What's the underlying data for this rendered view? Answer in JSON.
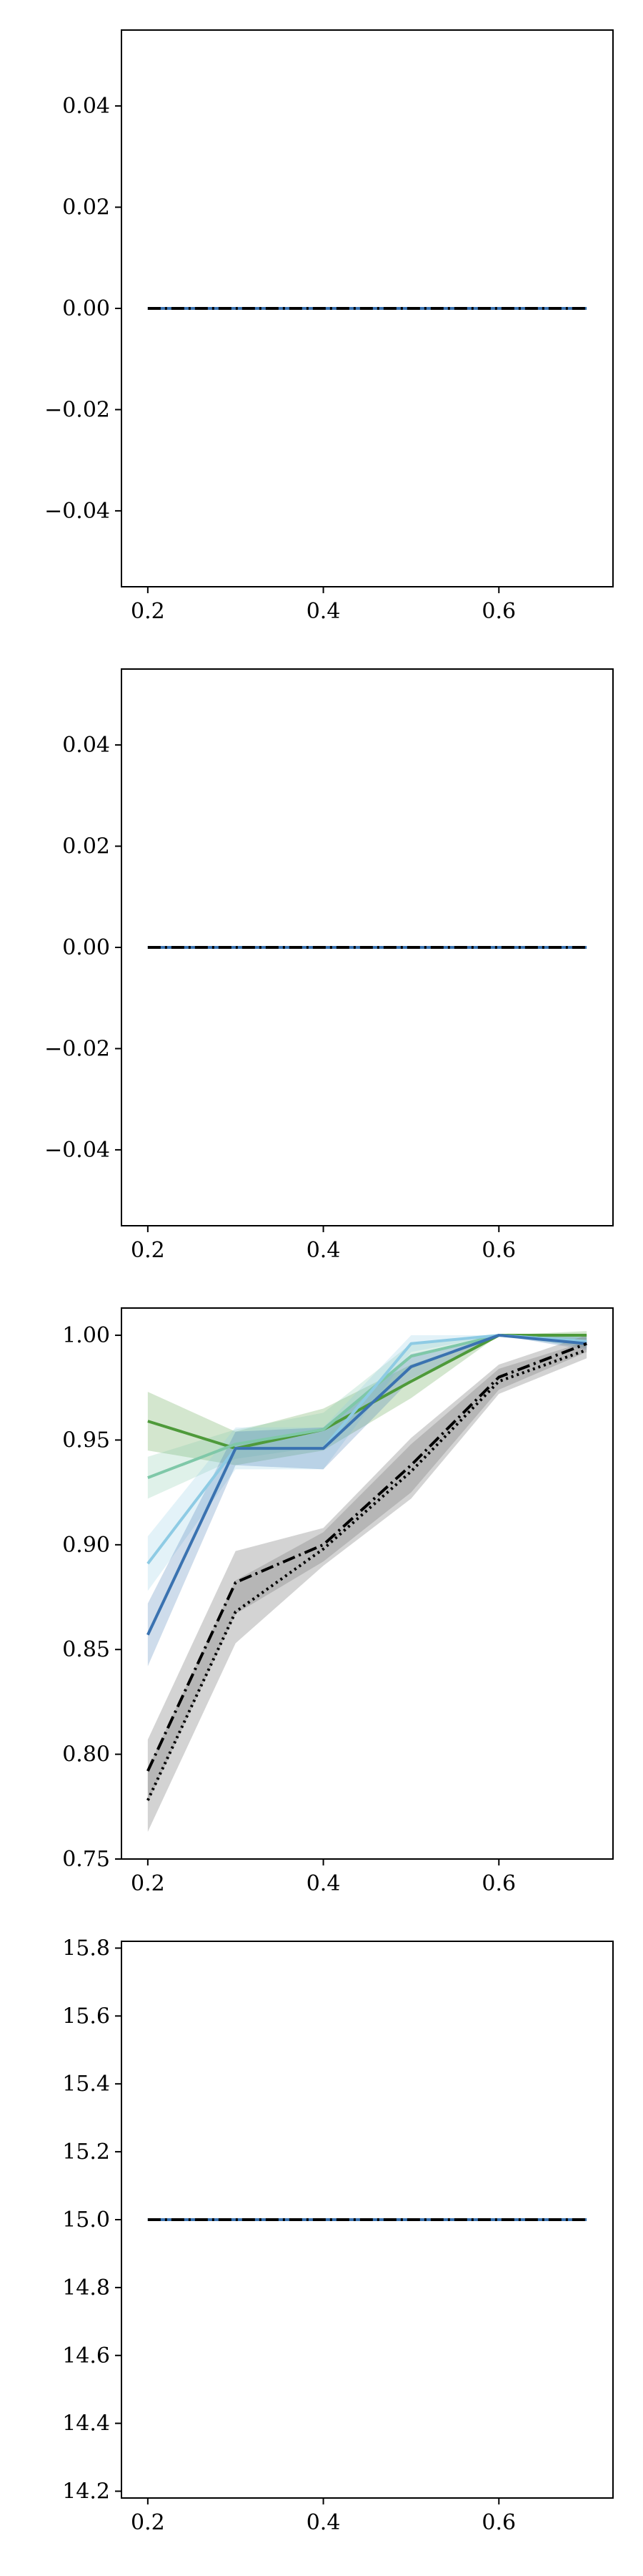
{
  "chart_data": [
    {
      "type": "line",
      "title": "",
      "xlabel": "",
      "ylabel": "",
      "xlim": [
        0.17,
        0.73
      ],
      "ylim": [
        -0.055,
        0.055
      ],
      "xticks": [
        0.2,
        0.4,
        0.6
      ],
      "xtick_labels": [
        "0.2",
        "0.4",
        "0.6"
      ],
      "yticks": [
        -0.04,
        -0.02,
        0.0,
        0.02,
        0.04
      ],
      "ytick_labels": [
        "−0.04",
        "−0.02",
        "0.00",
        "0.02",
        "0.04"
      ],
      "x": [
        0.2,
        0.3,
        0.4,
        0.5,
        0.6,
        0.7
      ],
      "grid": false,
      "series": [
        {
          "color": "#9fd0e6",
          "style": "solid",
          "values": [
            0,
            0,
            0,
            0,
            0,
            0
          ]
        },
        {
          "color": "#3a72b0",
          "style": "solid",
          "values": [
            0,
            0,
            0,
            0,
            0,
            0
          ]
        },
        {
          "color": "#000000",
          "style": "dashdot",
          "values": [
            0,
            0,
            0,
            0,
            0,
            0
          ]
        }
      ]
    },
    {
      "type": "line",
      "title": "",
      "xlabel": "",
      "ylabel": "",
      "xlim": [
        0.17,
        0.73
      ],
      "ylim": [
        -0.055,
        0.055
      ],
      "xticks": [
        0.2,
        0.4,
        0.6
      ],
      "xtick_labels": [
        "0.2",
        "0.4",
        "0.6"
      ],
      "yticks": [
        -0.04,
        -0.02,
        0.0,
        0.02,
        0.04
      ],
      "ytick_labels": [
        "−0.04",
        "−0.02",
        "0.00",
        "0.02",
        "0.04"
      ],
      "x": [
        0.2,
        0.3,
        0.4,
        0.5,
        0.6,
        0.7
      ],
      "grid": false,
      "series": [
        {
          "color": "#9fd0e6",
          "style": "solid",
          "values": [
            0,
            0,
            0,
            0,
            0,
            0
          ]
        },
        {
          "color": "#3a72b0",
          "style": "solid",
          "values": [
            0,
            0,
            0,
            0,
            0,
            0
          ]
        },
        {
          "color": "#000000",
          "style": "dashdot",
          "values": [
            0,
            0,
            0,
            0,
            0,
            0
          ]
        }
      ]
    },
    {
      "type": "line",
      "title": "",
      "xlabel": "",
      "ylabel": "",
      "xlim": [
        0.17,
        0.73
      ],
      "ylim": [
        0.75,
        1.013
      ],
      "xticks": [
        0.2,
        0.4,
        0.6
      ],
      "xtick_labels": [
        "0.2",
        "0.4",
        "0.6"
      ],
      "yticks": [
        0.75,
        0.8,
        0.85,
        0.9,
        0.95,
        1.0
      ],
      "ytick_labels": [
        "0.75",
        "0.80",
        "0.85",
        "0.90",
        "0.95",
        "1.00"
      ],
      "x": [
        0.2,
        0.3,
        0.4,
        0.5,
        0.6,
        0.7
      ],
      "grid": false,
      "series": [
        {
          "color": "#4e9a3a",
          "style": "solid",
          "values": [
            0.959,
            0.946,
            0.955,
            0.978,
            1.0,
            1.0
          ],
          "band": [
            0.014,
            0.008,
            0.01,
            0.008,
            0.0,
            0.002
          ]
        },
        {
          "color": "#7fc8a8",
          "style": "solid",
          "values": [
            0.932,
            0.948,
            0.955,
            0.99,
            1.0,
            0.997
          ],
          "band": [
            0.01,
            0.007,
            0.008,
            0.006,
            0.0,
            0.003
          ]
        },
        {
          "color": "#8ecbe4",
          "style": "solid",
          "values": [
            0.891,
            0.946,
            0.946,
            0.996,
            1.0,
            0.997
          ],
          "band": [
            0.013,
            0.01,
            0.01,
            0.004,
            0.0,
            0.003
          ]
        },
        {
          "color": "#3a72b0",
          "style": "solid",
          "values": [
            0.857,
            0.946,
            0.946,
            0.985,
            1.0,
            0.996
          ],
          "band": [
            0.015,
            0.008,
            0.01,
            0.006,
            0.0,
            0.003
          ]
        },
        {
          "color": "#000000",
          "style": "dashdot",
          "values": [
            0.792,
            0.882,
            0.9,
            0.938,
            0.98,
            0.996
          ],
          "band": [
            0.015,
            0.015,
            0.008,
            0.013,
            0.006,
            0.004
          ]
        },
        {
          "color": "#000000",
          "style": "dotted",
          "values": [
            0.778,
            0.868,
            0.898,
            0.935,
            0.978,
            0.993
          ],
          "band": [
            0.015,
            0.015,
            0.008,
            0.013,
            0.006,
            0.004
          ]
        }
      ]
    },
    {
      "type": "line",
      "title": "",
      "xlabel": "",
      "ylabel": "",
      "xlim": [
        0.17,
        0.73
      ],
      "ylim": [
        14.18,
        15.82
      ],
      "xticks": [
        0.2,
        0.4,
        0.6
      ],
      "xtick_labels": [
        "0.2",
        "0.4",
        "0.6"
      ],
      "yticks": [
        14.2,
        14.4,
        14.6,
        14.8,
        15.0,
        15.2,
        15.4,
        15.6,
        15.8
      ],
      "ytick_labels": [
        "14.2",
        "14.4",
        "14.6",
        "14.8",
        "15.0",
        "15.2",
        "15.4",
        "15.6",
        "15.8"
      ],
      "x": [
        0.2,
        0.3,
        0.4,
        0.5,
        0.6,
        0.7
      ],
      "grid": false,
      "series": [
        {
          "color": "#9fd0e6",
          "style": "solid",
          "values": [
            15,
            15,
            15,
            15,
            15,
            15
          ]
        },
        {
          "color": "#3a72b0",
          "style": "solid",
          "values": [
            15,
            15,
            15,
            15,
            15,
            15
          ]
        },
        {
          "color": "#000000",
          "style": "dashdot",
          "values": [
            15,
            15,
            15,
            15,
            15,
            15
          ]
        }
      ]
    }
  ]
}
